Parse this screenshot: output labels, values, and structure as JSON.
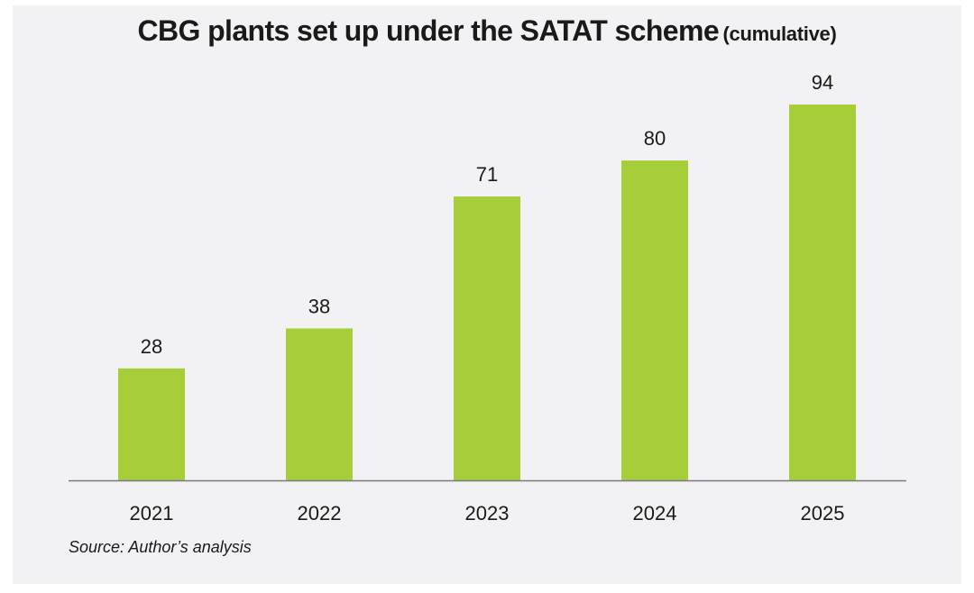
{
  "title": {
    "main": "CBG plants set up under the SATAT scheme",
    "sub": "(cumulative)"
  },
  "source": "Source: Author’s analysis",
  "colors": {
    "bar": "#a6ce39",
    "axis": "#7a7a7a",
    "text": "#1a1a1a",
    "background": "#f2f2f4"
  },
  "chart_data": {
    "type": "bar",
    "title": "CBG plants set up under the SATAT scheme (cumulative)",
    "categories": [
      "2021",
      "2022",
      "2023",
      "2024",
      "2025"
    ],
    "values": [
      28,
      38,
      71,
      80,
      94
    ],
    "data_labels": [
      "28",
      "38",
      "71",
      "80",
      "94"
    ],
    "xlabel": "",
    "ylabel": "",
    "ylim": [
      0,
      94
    ],
    "grid": false,
    "legend": "none"
  }
}
